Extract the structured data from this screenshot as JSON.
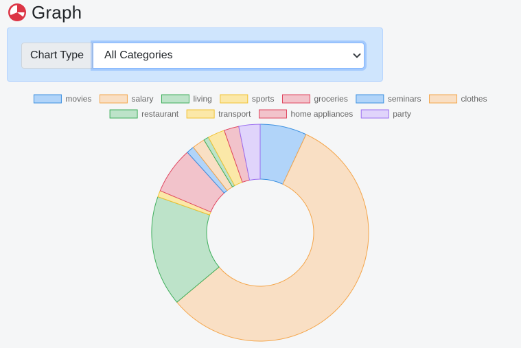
{
  "header": {
    "title": "Graph",
    "logo_icon": "pie-chart-icon",
    "logo_color": "#dc3545"
  },
  "filter": {
    "label": "Chart Type",
    "selected": "All Categories",
    "panel_color": "#cfe5fd"
  },
  "chart_data": {
    "type": "pie",
    "variant": "doughnut",
    "title": "",
    "legend_position": "top",
    "categories": [
      "movies",
      "salary",
      "living",
      "sports",
      "groceries",
      "seminars",
      "clothes",
      "restaurant",
      "transport",
      "home appliances",
      "party"
    ],
    "values": [
      110,
      900,
      260,
      15,
      110,
      18,
      30,
      12,
      40,
      35,
      50
    ],
    "colors": [
      {
        "fill": "#b1d4f9",
        "border": "#3a8fe0"
      },
      {
        "fill": "#f9dfc4",
        "border": "#f4a54a"
      },
      {
        "fill": "#bde3c9",
        "border": "#3dad5a"
      },
      {
        "fill": "#fbe8a8",
        "border": "#f1c232"
      },
      {
        "fill": "#f2c3cb",
        "border": "#e0455f"
      },
      {
        "fill": "#b1d4f9",
        "border": "#3a8fe0"
      },
      {
        "fill": "#f9dfc4",
        "border": "#f4a54a"
      },
      {
        "fill": "#bde3c9",
        "border": "#3dad5a"
      },
      {
        "fill": "#fbe8a8",
        "border": "#f1c232"
      },
      {
        "fill": "#f2c3cb",
        "border": "#e0455f"
      },
      {
        "fill": "#e0d4fb",
        "border": "#9a6ef0"
      }
    ]
  }
}
